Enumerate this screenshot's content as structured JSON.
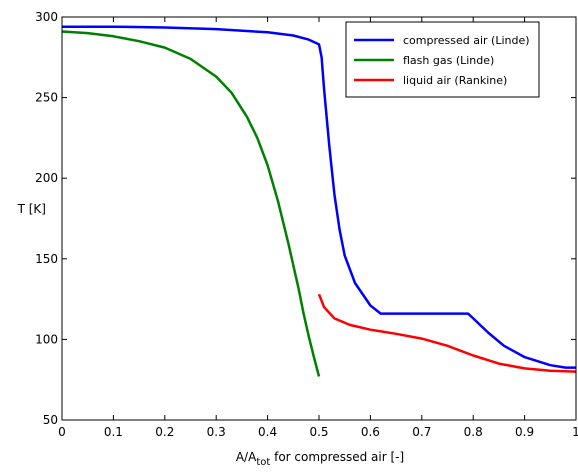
{
  "chart_data": {
    "type": "line",
    "xlabel": {
      "main": "A/A",
      "sub": "tot",
      "rest": " for compressed air [-]"
    },
    "ylabel": "T [K]",
    "xlim": [
      0,
      1
    ],
    "ylim": [
      50,
      300
    ],
    "xticks": [
      0,
      0.1,
      0.2,
      0.3,
      0.4,
      0.5,
      0.6,
      0.7,
      0.8,
      0.9,
      1
    ],
    "xtick_labels": [
      "0",
      "0.1",
      "0.2",
      "0.3",
      "0.4",
      "0.5",
      "0.6",
      "0.7",
      "0.8",
      "0.9",
      "1"
    ],
    "yticks": [
      50,
      100,
      150,
      200,
      250,
      300
    ],
    "ytick_labels": [
      "50",
      "100",
      "150",
      "200",
      "250",
      "300"
    ],
    "grid": false,
    "legend_position": "top-right",
    "series": [
      {
        "name": "compressed air (Linde)",
        "color": "#0000ff",
        "points": [
          [
            0,
            294
          ],
          [
            0.1,
            294
          ],
          [
            0.2,
            293.5
          ],
          [
            0.3,
            292.5
          ],
          [
            0.4,
            290.5
          ],
          [
            0.45,
            288.5
          ],
          [
            0.48,
            286
          ],
          [
            0.5,
            283
          ],
          [
            0.505,
            275
          ],
          [
            0.51,
            255
          ],
          [
            0.52,
            220
          ],
          [
            0.53,
            190
          ],
          [
            0.54,
            168
          ],
          [
            0.55,
            152
          ],
          [
            0.57,
            135
          ],
          [
            0.6,
            121
          ],
          [
            0.62,
            116
          ],
          [
            0.7,
            116
          ],
          [
            0.79,
            116
          ],
          [
            0.8,
            113
          ],
          [
            0.83,
            104
          ],
          [
            0.86,
            96
          ],
          [
            0.9,
            89
          ],
          [
            0.95,
            84
          ],
          [
            0.98,
            82.5
          ],
          [
            1,
            82.5
          ]
        ]
      },
      {
        "name": "flash gas (Linde)",
        "color": "#008000",
        "points": [
          [
            0,
            291
          ],
          [
            0.05,
            290
          ],
          [
            0.1,
            288
          ],
          [
            0.15,
            285
          ],
          [
            0.2,
            281
          ],
          [
            0.25,
            274
          ],
          [
            0.3,
            263
          ],
          [
            0.33,
            253
          ],
          [
            0.36,
            238
          ],
          [
            0.38,
            225
          ],
          [
            0.4,
            208
          ],
          [
            0.42,
            186
          ],
          [
            0.44,
            160
          ],
          [
            0.46,
            132
          ],
          [
            0.47,
            116
          ],
          [
            0.48,
            102
          ],
          [
            0.49,
            89
          ],
          [
            0.5,
            77
          ]
        ]
      },
      {
        "name": "liquid air (Rankine)",
        "color": "#ff0000",
        "points": [
          [
            0.5,
            128
          ],
          [
            0.51,
            120
          ],
          [
            0.53,
            113
          ],
          [
            0.56,
            109
          ],
          [
            0.6,
            106
          ],
          [
            0.65,
            103.5
          ],
          [
            0.7,
            100.5
          ],
          [
            0.75,
            96
          ],
          [
            0.8,
            90
          ],
          [
            0.85,
            85
          ],
          [
            0.9,
            82
          ],
          [
            0.95,
            80.5
          ],
          [
            1,
            80
          ]
        ]
      }
    ]
  }
}
